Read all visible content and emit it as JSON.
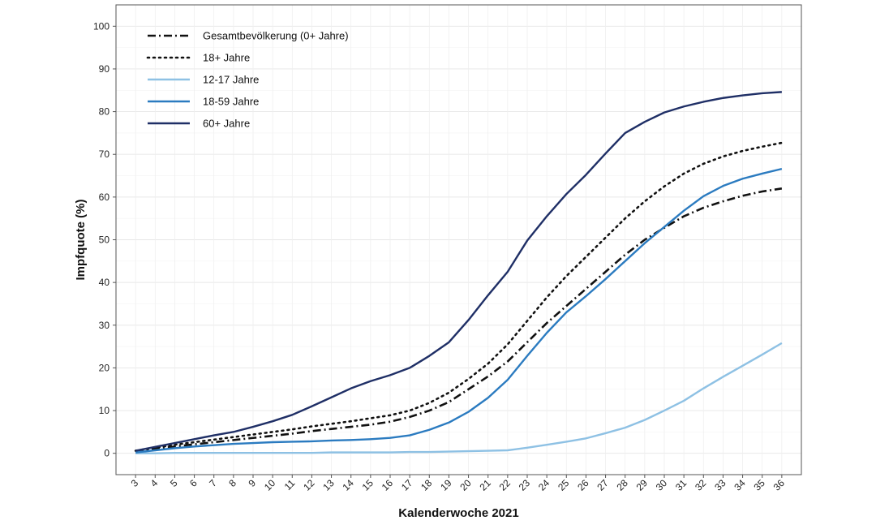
{
  "chart_data": {
    "type": "line",
    "xlabel": "Kalenderwoche 2021",
    "ylabel": "Impfquote (%)",
    "ylim": [
      -5,
      105
    ],
    "xlim": [
      2,
      37
    ],
    "grid": true,
    "legend_position": "top-left",
    "x": [
      3,
      4,
      5,
      6,
      7,
      8,
      9,
      10,
      11,
      12,
      13,
      14,
      15,
      16,
      17,
      18,
      19,
      20,
      21,
      22,
      23,
      24,
      25,
      26,
      27,
      28,
      29,
      30,
      31,
      32,
      33,
      34,
      35,
      36
    ],
    "yticks": [
      0,
      10,
      20,
      30,
      40,
      50,
      60,
      70,
      80,
      90,
      100
    ],
    "series": [
      {
        "name": "Gesamtbevölkerung (0+ Jahre)",
        "color": "#111111",
        "style": "dashdot",
        "values": [
          0.5,
          1.1,
          1.6,
          2.1,
          2.6,
          3.1,
          3.6,
          4.1,
          4.6,
          5.2,
          5.7,
          6.2,
          6.7,
          7.4,
          8.5,
          10.0,
          12.0,
          15.0,
          18.0,
          21.5,
          26.0,
          30.5,
          34.5,
          38.5,
          42.5,
          46.5,
          50.0,
          52.8,
          55.5,
          57.5,
          59.0,
          60.3,
          61.3,
          62.0
        ]
      },
      {
        "name": "18+ Jahre",
        "color": "#111111",
        "style": "dotted",
        "values": [
          0.6,
          1.3,
          2.0,
          2.6,
          3.2,
          3.8,
          4.4,
          5.0,
          5.6,
          6.3,
          6.9,
          7.5,
          8.2,
          8.9,
          10.0,
          11.8,
          14.2,
          17.4,
          21.0,
          25.5,
          31.0,
          36.5,
          41.5,
          46.0,
          50.5,
          55.0,
          59.0,
          62.5,
          65.5,
          67.8,
          69.5,
          70.8,
          71.8,
          72.7
        ]
      },
      {
        "name": "12-17 Jahre",
        "color": "#8ec1e4",
        "style": "solid",
        "values": [
          0.0,
          0.0,
          0.1,
          0.1,
          0.1,
          0.1,
          0.1,
          0.1,
          0.1,
          0.1,
          0.2,
          0.2,
          0.2,
          0.2,
          0.3,
          0.3,
          0.4,
          0.5,
          0.6,
          0.7,
          1.3,
          2.0,
          2.7,
          3.5,
          4.7,
          6.0,
          7.8,
          10.0,
          12.3,
          15.2,
          17.9,
          20.5,
          23.1,
          25.8
        ]
      },
      {
        "name": "18-59 Jahre",
        "color": "#2b7bc0",
        "style": "solid",
        "values": [
          0.2,
          0.7,
          1.2,
          1.6,
          1.9,
          2.2,
          2.4,
          2.6,
          2.7,
          2.8,
          3.0,
          3.1,
          3.3,
          3.6,
          4.2,
          5.5,
          7.2,
          9.7,
          13.0,
          17.2,
          22.8,
          28.2,
          33.0,
          36.8,
          40.8,
          45.0,
          49.2,
          53.0,
          56.8,
          60.2,
          62.6,
          64.3,
          65.5,
          66.6
        ]
      },
      {
        "name": "60+ Jahre",
        "color": "#1f2f66",
        "style": "solid",
        "values": [
          0.6,
          1.5,
          2.4,
          3.3,
          4.2,
          5.0,
          6.2,
          7.5,
          9.0,
          11.0,
          13.1,
          15.2,
          16.9,
          18.3,
          20.0,
          22.8,
          26.0,
          31.2,
          37.0,
          42.5,
          49.8,
          55.5,
          60.7,
          65.2,
          70.2,
          75.0,
          77.6,
          79.8,
          81.2,
          82.3,
          83.2,
          83.8,
          84.3,
          84.6
        ]
      }
    ]
  }
}
